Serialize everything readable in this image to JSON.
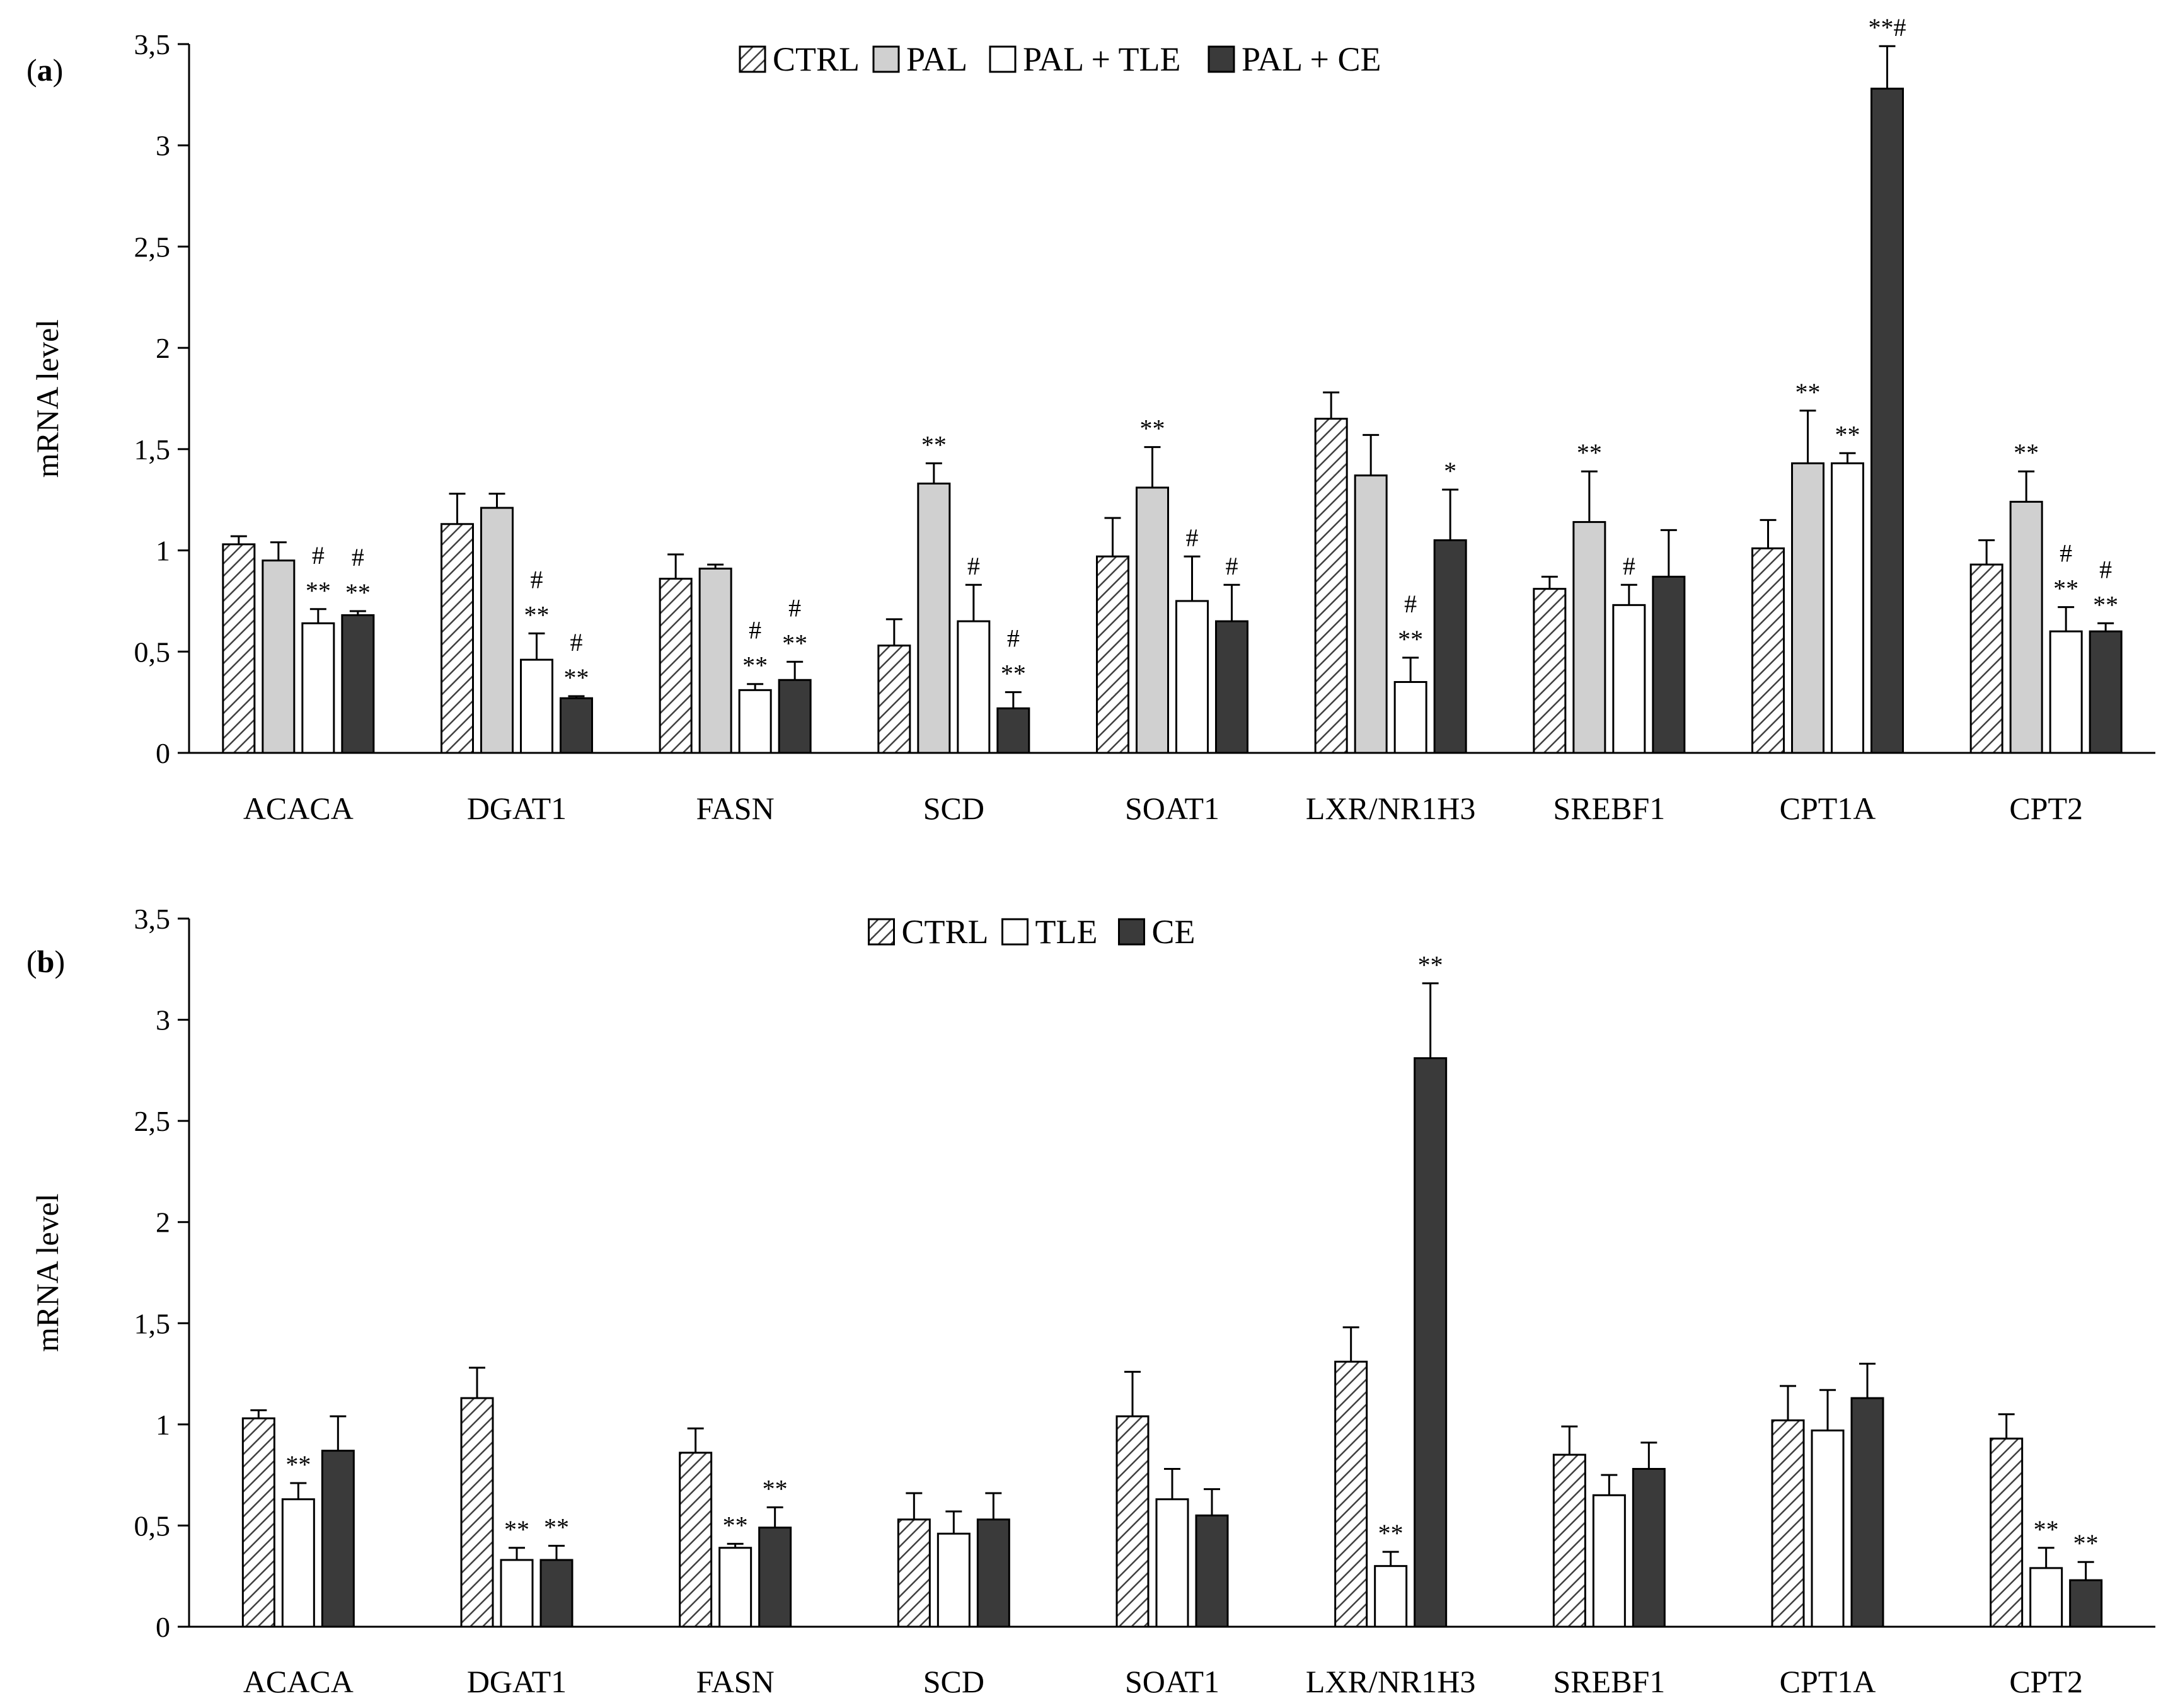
{
  "chart_data": [
    {
      "type": "bar",
      "panel_label": "a",
      "ylabel": "mRNA level",
      "xlabel": "",
      "ylim": [
        0,
        3.5
      ],
      "yticks": [
        "0",
        "0,5",
        "1",
        "1,5",
        "2",
        "2,5",
        "3",
        "3,5"
      ],
      "categories": [
        "ACACA",
        "DGAT1",
        "FASN",
        "SCD",
        "SOAT1",
        "LXR/NR1H3",
        "SREBF1",
        "CPT1A",
        "CPT2"
      ],
      "series": [
        {
          "name": "CTRL",
          "style": "hatch",
          "values": [
            1.03,
            1.13,
            0.86,
            0.53,
            0.97,
            1.65,
            0.81,
            1.01,
            0.93
          ],
          "errors": [
            0.04,
            0.15,
            0.12,
            0.13,
            0.19,
            0.13,
            0.06,
            0.14,
            0.12
          ],
          "annotations": [
            [],
            [],
            [],
            [],
            [],
            [],
            [],
            [],
            []
          ]
        },
        {
          "name": "PAL",
          "style": "light",
          "values": [
            0.95,
            1.21,
            0.91,
            1.33,
            1.31,
            1.37,
            1.14,
            1.43,
            1.24
          ],
          "errors": [
            0.09,
            0.07,
            0.02,
            0.1,
            0.2,
            0.2,
            0.25,
            0.26,
            0.15
          ],
          "annotations": [
            [],
            [],
            [],
            [
              "**"
            ],
            [
              "**"
            ],
            [],
            [
              "**"
            ],
            [
              "**"
            ],
            [
              "**"
            ]
          ]
        },
        {
          "name": "PAL + TLE",
          "style": "white",
          "values": [
            0.64,
            0.46,
            0.31,
            0.65,
            0.75,
            0.35,
            0.73,
            1.43,
            0.6
          ],
          "errors": [
            0.07,
            0.13,
            0.03,
            0.18,
            0.22,
            0.12,
            0.1,
            0.05,
            0.12
          ],
          "annotations": [
            [
              "**",
              "#"
            ],
            [
              "**",
              "#"
            ],
            [
              "**",
              "#"
            ],
            [
              "#"
            ],
            [
              "#"
            ],
            [
              "**",
              "#"
            ],
            [
              "#"
            ],
            [
              "**"
            ],
            [
              "**",
              "#"
            ]
          ]
        },
        {
          "name": "PAL + CE",
          "style": "dark",
          "values": [
            0.68,
            0.27,
            0.36,
            0.22,
            0.65,
            1.05,
            0.87,
            3.28,
            0.6
          ],
          "errors": [
            0.02,
            0.01,
            0.09,
            0.08,
            0.18,
            0.25,
            0.23,
            0.21,
            0.04
          ],
          "annotations": [
            [
              "**",
              "#"
            ],
            [
              "**",
              "#"
            ],
            [
              "**",
              "#"
            ],
            [
              "**",
              "#"
            ],
            [
              "#"
            ],
            [
              "*"
            ],
            [],
            [
              "**#"
            ],
            [
              "**",
              "#"
            ]
          ]
        }
      ]
    },
    {
      "type": "bar",
      "panel_label": "b",
      "ylabel": "mRNA level",
      "xlabel": "",
      "ylim": [
        0,
        3.5
      ],
      "yticks": [
        "0",
        "0,5",
        "1",
        "1,5",
        "2",
        "2,5",
        "3",
        "3,5"
      ],
      "categories": [
        "ACACA",
        "DGAT1",
        "FASN",
        "SCD",
        "SOAT1",
        "LXR/NR1H3",
        "SREBF1",
        "CPT1A",
        "CPT2"
      ],
      "series": [
        {
          "name": "CTRL",
          "style": "hatch",
          "values": [
            1.03,
            1.13,
            0.86,
            0.53,
            1.04,
            1.31,
            0.85,
            1.02,
            0.93
          ],
          "errors": [
            0.04,
            0.15,
            0.12,
            0.13,
            0.22,
            0.17,
            0.14,
            0.17,
            0.12
          ],
          "annotations": [
            [],
            [],
            [],
            [],
            [],
            [],
            [],
            [],
            []
          ]
        },
        {
          "name": "TLE",
          "style": "white",
          "values": [
            0.63,
            0.33,
            0.39,
            0.46,
            0.63,
            0.3,
            0.65,
            0.97,
            0.29
          ],
          "errors": [
            0.08,
            0.06,
            0.02,
            0.11,
            0.15,
            0.07,
            0.1,
            0.2,
            0.1
          ],
          "annotations": [
            [
              "**"
            ],
            [
              "**"
            ],
            [
              "**"
            ],
            [],
            [],
            [
              "**"
            ],
            [],
            [],
            [
              "**"
            ]
          ]
        },
        {
          "name": "CE",
          "style": "dark",
          "values": [
            0.87,
            0.33,
            0.49,
            0.53,
            0.55,
            2.81,
            0.78,
            1.13,
            0.23
          ],
          "errors": [
            0.17,
            0.07,
            0.1,
            0.13,
            0.13,
            0.37,
            0.13,
            0.17,
            0.09
          ],
          "annotations": [
            [],
            [
              "**"
            ],
            [
              "**"
            ],
            [],
            [],
            [
              "**"
            ],
            [],
            [],
            [
              "**"
            ]
          ]
        }
      ]
    }
  ]
}
